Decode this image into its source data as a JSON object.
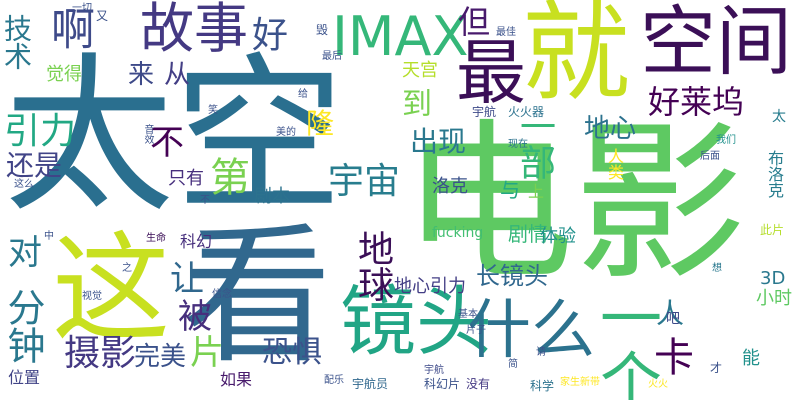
{
  "cloud": {
    "words": [
      {
        "text": "太空",
        "color": "#2a6f8f"
      },
      {
        "text": "电影",
        "color": "#5ec962"
      },
      {
        "text": "看",
        "color": "#31688e"
      },
      {
        "text": "这",
        "color": "#c8e020"
      },
      {
        "text": "就",
        "color": "#c8e020"
      },
      {
        "text": "空间",
        "color": "#3b0f57"
      },
      {
        "text": "最",
        "color": "#3b0f57"
      },
      {
        "text": "故事",
        "color": "#443983"
      },
      {
        "text": "IMAX",
        "color": "#35b779"
      },
      {
        "text": "镜头",
        "color": "#21a585"
      },
      {
        "text": "什么",
        "color": "#2c728e"
      },
      {
        "text": "一个",
        "color": "#35b779"
      },
      {
        "text": "啊",
        "color": "#3e4a89"
      },
      {
        "text": "技术",
        "color": "#2a788e"
      },
      {
        "text": "好",
        "color": "#3b528b"
      },
      {
        "text": "但",
        "color": "#481a6c"
      },
      {
        "text": "好莱坞",
        "color": "#440154"
      },
      {
        "text": "到",
        "color": "#7ad151"
      },
      {
        "text": "来",
        "color": "#3e4a89"
      },
      {
        "text": "从",
        "color": "#433e85"
      },
      {
        "text": "引力",
        "color": "#22a884"
      },
      {
        "text": "不",
        "color": "#440154"
      },
      {
        "text": "一部",
        "color": "#35b779"
      },
      {
        "text": "地心",
        "color": "#2c728e"
      },
      {
        "text": "出现",
        "color": "#2a788e"
      },
      {
        "text": "还是",
        "color": "#414487"
      },
      {
        "text": "第",
        "color": "#7ad151"
      },
      {
        "text": "宇宙",
        "color": "#287d8e"
      },
      {
        "text": "对",
        "color": "#2a788e"
      },
      {
        "text": "地球",
        "color": "#3b0f57"
      },
      {
        "text": "让",
        "color": "#31688e"
      },
      {
        "text": "被",
        "color": "#472f7d"
      },
      {
        "text": "分钟",
        "color": "#2a788e"
      },
      {
        "text": "摄影",
        "color": "#443983"
      },
      {
        "text": "完美",
        "color": "#3b528b"
      },
      {
        "text": "片",
        "color": "#7ad151"
      },
      {
        "text": "恐惧",
        "color": "#3b528b"
      },
      {
        "text": "卡",
        "color": "#440154"
      },
      {
        "text": "人",
        "color": "#2a788e"
      },
      {
        "text": "长镜头",
        "color": "#31688e"
      },
      {
        "text": "地心引力",
        "color": "#433e85"
      },
      {
        "text": "3D",
        "color": "#2a788e"
      },
      {
        "text": "小时",
        "color": "#5ec962"
      },
      {
        "text": "剧情",
        "color": "#35b779"
      },
      {
        "text": "体验",
        "color": "#21918c"
      },
      {
        "text": "fucking",
        "color": "#42be71"
      },
      {
        "text": "天宫",
        "color": "#b5de2b"
      },
      {
        "text": "觉得",
        "color": "#7ad151"
      },
      {
        "text": "隆",
        "color": "#fde725"
      },
      {
        "text": "剧本",
        "color": "#2c728e"
      },
      {
        "text": "只有",
        "color": "#472f7d"
      },
      {
        "text": "洛克",
        "color": "#3b528b"
      },
      {
        "text": "与",
        "color": "#22a884"
      },
      {
        "text": "上",
        "color": "#7ad151"
      },
      {
        "text": "宇航",
        "color": "#3e4a89"
      },
      {
        "text": "火火器",
        "color": "#2c728e"
      },
      {
        "text": "人类",
        "color": "#fde725"
      },
      {
        "text": "布洛克",
        "color": "#287d8e"
      },
      {
        "text": "太",
        "color": "#287d8e"
      },
      {
        "text": "科幻",
        "color": "#472f7d"
      },
      {
        "text": "生命",
        "color": "#3b0f57"
      },
      {
        "text": "位置",
        "color": "#414487"
      },
      {
        "text": "如果",
        "color": "#481a6c"
      },
      {
        "text": "宇航员",
        "color": "#31688e"
      },
      {
        "text": "科幻片",
        "color": "#3b528b"
      },
      {
        "text": "没有",
        "color": "#443983"
      },
      {
        "text": "科学",
        "color": "#2c728e"
      },
      {
        "text": "能",
        "color": "#21918c"
      },
      {
        "text": "吧",
        "color": "#3e4a89"
      },
      {
        "text": "此片",
        "color": "#b5de2b"
      },
      {
        "text": "想",
        "color": "#2a788e"
      },
      {
        "text": "我们",
        "color": "#21918c"
      },
      {
        "text": "后面",
        "color": "#3b528b"
      },
      {
        "text": "现在",
        "color": "#2c728e"
      },
      {
        "text": "毁",
        "color": "#3b528b"
      },
      {
        "text": "最后",
        "color": "#3b528b"
      },
      {
        "text": "最佳",
        "color": "#3b528b"
      },
      {
        "text": "一切",
        "color": "#3b528b"
      },
      {
        "text": "又",
        "color": "#3b528b"
      },
      {
        "text": "音效",
        "color": "#3b528b"
      },
      {
        "text": "笑",
        "color": "#3b528b"
      },
      {
        "text": "美的",
        "color": "#3b528b"
      },
      {
        "text": "这么",
        "color": "#3b528b"
      },
      {
        "text": "中",
        "color": "#3b528b"
      },
      {
        "text": "信念",
        "color": "#3b528b"
      },
      {
        "text": "视觉",
        "color": "#3b528b"
      },
      {
        "text": "之",
        "color": "#3b528b"
      },
      {
        "text": "基本",
        "color": "#3b528b"
      },
      {
        "text": "片子",
        "color": "#3b528b"
      },
      {
        "text": "配乐",
        "color": "#3b528b"
      },
      {
        "text": "简",
        "color": "#3b528b"
      },
      {
        "text": "请",
        "color": "#3b528b"
      },
      {
        "text": "才",
        "color": "#3b528b"
      },
      {
        "text": "给",
        "color": "#3b528b"
      },
      {
        "text": "火火",
        "color": "#fde725"
      },
      {
        "text": "宇航",
        "color": "#3e4a89"
      },
      {
        "text": "不",
        "color": "#3b528b"
      },
      {
        "text": "家生新带",
        "color": "#fde725"
      }
    ]
  }
}
